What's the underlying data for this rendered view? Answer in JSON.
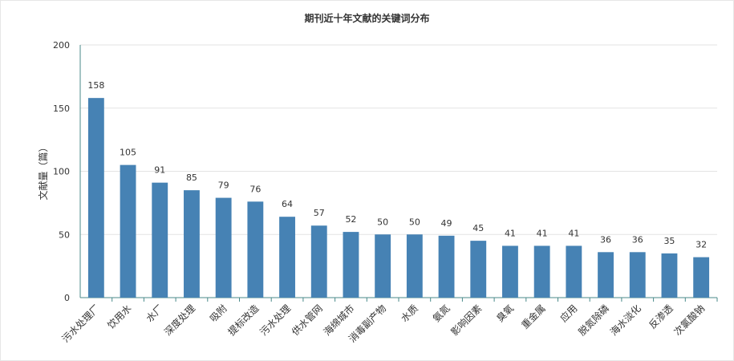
{
  "chart_data": {
    "type": "bar",
    "title": "期刊近十年文献的关键词分布",
    "xlabel": "",
    "ylabel": "文献量（篇）",
    "ylim": [
      0,
      200
    ],
    "yticks": [
      0,
      50,
      100,
      150,
      200
    ],
    "grid": true,
    "legend": "none",
    "bar_color": "#4682b4",
    "categories": [
      "污水处理厂",
      "饮用水",
      "水厂",
      "深度处理",
      "吸附",
      "提标改造",
      "污水处理",
      "供水管网",
      "海绵城市",
      "消毒副产物",
      "水质",
      "氨氮",
      "影响因素",
      "臭氧",
      "重金属",
      "应用",
      "脱氮除磷",
      "海水淡化",
      "反渗透",
      "次氯酸钠"
    ],
    "values": [
      158,
      105,
      91,
      85,
      79,
      76,
      64,
      57,
      52,
      50,
      50,
      49,
      45,
      41,
      41,
      41,
      36,
      36,
      35,
      32
    ]
  }
}
